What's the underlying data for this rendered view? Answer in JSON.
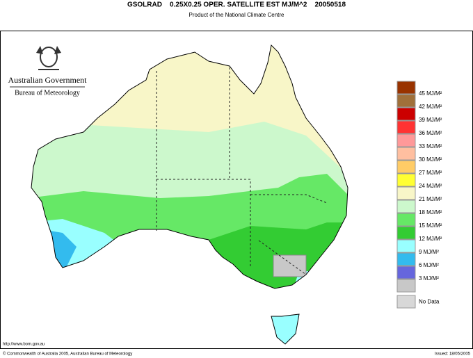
{
  "header": {
    "title": "GSOLRAD    0.25X0.25 OPER. SATELLITE EST MJ/M^2    20050518",
    "subtitle": "Product of the National Climate Centre"
  },
  "logo": {
    "line1": "Australian Government",
    "line2": "Bureau of Meteorology"
  },
  "legend": {
    "labels": [
      "45 MJ/M²",
      "42 MJ/M²",
      "39 MJ/M²",
      "36 MJ/M²",
      "33 MJ/M²",
      "30 MJ/M²",
      "27 MJ/M²",
      "24 MJ/M²",
      "21 MJ/M²",
      "18 MJ/M²",
      "15 MJ/M²",
      "12 MJ/M²",
      "9 MJ/M²",
      "6 MJ/M²",
      "3 MJ/M²"
    ],
    "colors": [
      "#993300",
      "#a0703a",
      "#cc0000",
      "#ff3333",
      "#ff9999",
      "#ffbfa0",
      "#ffcc66",
      "#ffff33",
      "#f8f6c8",
      "#ccf8cc",
      "#66e866",
      "#33cc33",
      "#99ffff",
      "#33bbee",
      "#6666dd",
      "#c8c8c8"
    ],
    "no_data_label": "No Data",
    "no_data_color": "#d8d8d8"
  },
  "footer": {
    "url": "http://www.bom.gov.au",
    "copyright": "© Commonwealth of Australia 2005, Australian Bureau of Meteorology",
    "issued": "Issued: 18/05/2005"
  }
}
